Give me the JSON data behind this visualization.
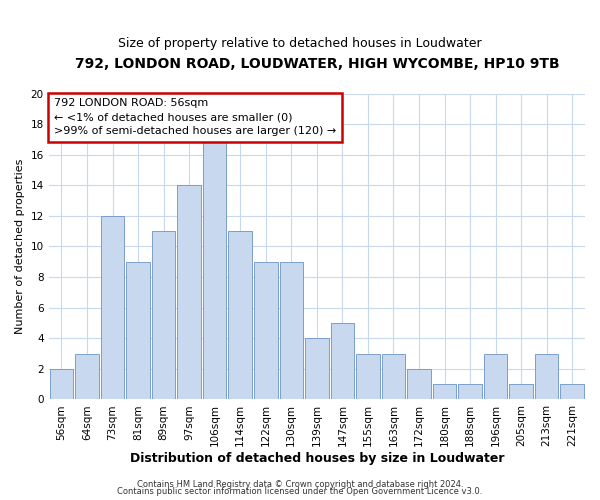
{
  "title": "792, LONDON ROAD, LOUDWATER, HIGH WYCOMBE, HP10 9TB",
  "subtitle": "Size of property relative to detached houses in Loudwater",
  "xlabel": "Distribution of detached houses by size in Loudwater",
  "ylabel": "Number of detached properties",
  "bar_labels": [
    "56sqm",
    "64sqm",
    "73sqm",
    "81sqm",
    "89sqm",
    "97sqm",
    "106sqm",
    "114sqm",
    "122sqm",
    "130sqm",
    "139sqm",
    "147sqm",
    "155sqm",
    "163sqm",
    "172sqm",
    "180sqm",
    "188sqm",
    "196sqm",
    "205sqm",
    "213sqm",
    "221sqm"
  ],
  "bar_values": [
    2,
    3,
    12,
    9,
    11,
    14,
    17,
    11,
    9,
    9,
    4,
    5,
    3,
    3,
    2,
    1,
    1,
    3,
    1,
    3,
    1
  ],
  "bar_color": "#c8d8ee",
  "bar_edge_color": "#7a9fc8",
  "ylim": [
    0,
    20
  ],
  "yticks": [
    0,
    2,
    4,
    6,
    8,
    10,
    12,
    14,
    16,
    18,
    20
  ],
  "annotation_title": "792 LONDON ROAD: 56sqm",
  "annotation_line1": "← <1% of detached houses are smaller (0)",
  "annotation_line2": ">99% of semi-detached houses are larger (120) →",
  "annotation_box_color": "#ffffff",
  "annotation_box_edge": "#cc0000",
  "footer1": "Contains HM Land Registry data © Crown copyright and database right 2024.",
  "footer2": "Contains public sector information licensed under the Open Government Licence v3.0.",
  "bg_color": "#ffffff",
  "grid_color": "#c8d8ee",
  "title_fontsize": 10,
  "subtitle_fontsize": 9,
  "xlabel_fontsize": 9,
  "ylabel_fontsize": 8,
  "tick_fontsize": 7.5,
  "footer_fontsize": 6,
  "ann_fontsize": 8
}
